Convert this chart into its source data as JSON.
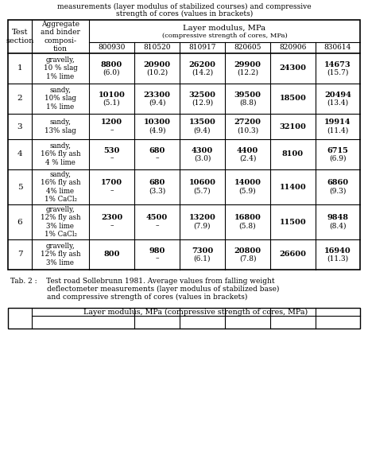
{
  "title_line1": "measurements (layer modulus of stabilized courses) and compressive",
  "title_line2": "strength of cores (values in brackets)",
  "date_headers": [
    "800930",
    "810520",
    "810917",
    "820605",
    "820906",
    "830614"
  ],
  "rows": [
    {
      "section": "1",
      "composition": "gravelly,\n10 % slag\n1% lime",
      "values": [
        [
          "8800",
          "(6.0)"
        ],
        [
          "20900",
          "(10.2)"
        ],
        [
          "26200",
          "(14.2)"
        ],
        [
          "29900",
          "(12.2)"
        ],
        [
          "24300",
          ""
        ],
        [
          "14673",
          "(15.7)"
        ]
      ]
    },
    {
      "section": "2",
      "composition": "sandy,\n10% slag\n1% lime",
      "values": [
        [
          "10100",
          "(5.1)"
        ],
        [
          "23300",
          "(9.4)"
        ],
        [
          "32500",
          "(12.9)"
        ],
        [
          "39500",
          "(8.8)"
        ],
        [
          "18500",
          ""
        ],
        [
          "20494",
          "(13.4)"
        ]
      ]
    },
    {
      "section": "3",
      "composition": "sandy,\n13% slag",
      "values": [
        [
          "1200",
          "–"
        ],
        [
          "10300",
          "(4.9)"
        ],
        [
          "13500",
          "(9.4)"
        ],
        [
          "27200",
          "(10.3)"
        ],
        [
          "32100",
          ""
        ],
        [
          "19914",
          "(11.4)"
        ]
      ]
    },
    {
      "section": "4",
      "composition": "sandy,\n16% fly ash\n4 % lime",
      "values": [
        [
          "530",
          "–"
        ],
        [
          "680",
          "–"
        ],
        [
          "4300",
          "(3.0)"
        ],
        [
          "4400",
          "(2.4)"
        ],
        [
          "8100",
          ""
        ],
        [
          "6715",
          "(6.9)"
        ]
      ]
    },
    {
      "section": "5",
      "composition": "sandy,\n16% fly ash\n4% lime\n1% CaCl₂",
      "values": [
        [
          "1700",
          "–"
        ],
        [
          "680",
          "(3.3)"
        ],
        [
          "10600",
          "(5.7)"
        ],
        [
          "14000",
          "(5.9)"
        ],
        [
          "11400",
          ""
        ],
        [
          "6860",
          "(9.3)"
        ]
      ]
    },
    {
      "section": "6",
      "composition": "gravelly,\n12% fly ash\n3% lime\n1% CaCl₂",
      "values": [
        [
          "2300",
          "–"
        ],
        [
          "4500",
          "–"
        ],
        [
          "13200",
          "(7.9)"
        ],
        [
          "16800",
          "(5.8)"
        ],
        [
          "11500",
          ""
        ],
        [
          "9848",
          "(8.4)"
        ]
      ]
    },
    {
      "section": "7",
      "composition": "gravelly,\n12% fly ash\n3% lime",
      "values": [
        [
          "800",
          ""
        ],
        [
          "980",
          "–"
        ],
        [
          "7300",
          "(6.1)"
        ],
        [
          "20800",
          "(7.8)"
        ],
        [
          "26600",
          ""
        ],
        [
          "16940",
          "(11.3)"
        ]
      ]
    }
  ],
  "tab2_line1": "Tab. 2 :    Test road Sollebrunn 1981. Average values from falling weight",
  "tab2_line2": "                deflectometer measurements (layer modulus of stabilized base)",
  "tab2_line3": "                and compressive strength of cores (values in brackets)",
  "tab2_header": "Layer modulus, MPa (compressive strength of cores, MPa)",
  "bg_color": "#ffffff",
  "text_color": "#000000"
}
